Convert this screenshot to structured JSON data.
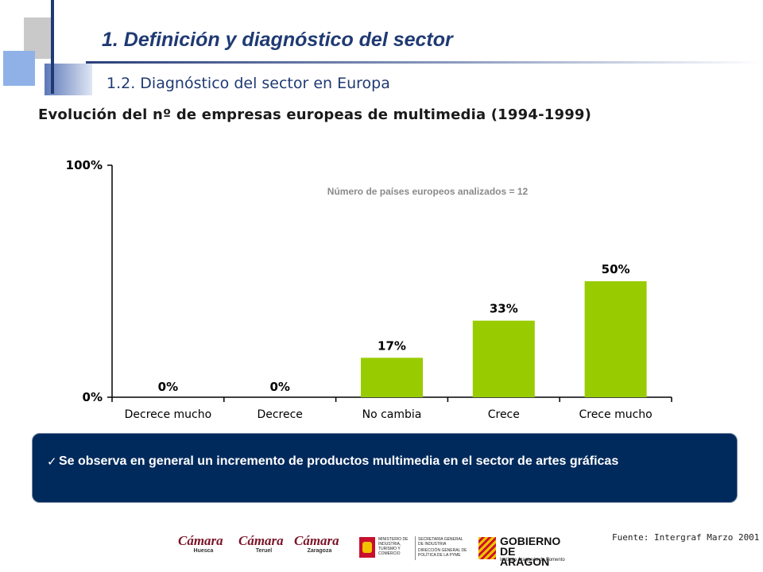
{
  "header": {
    "title": "1.  Definición y diagnóstico del sector",
    "subtitle": "1.2. Diagnóstico del sector en Europa"
  },
  "chart_data": {
    "type": "bar",
    "title": "Evolución del nº de empresas europeas de multimedia (1994-1999)",
    "annotation": "Número de países europeos analizados = 12",
    "categories": [
      "Decrece mucho",
      "Decrece",
      "No cambia",
      "Crece",
      "Crece mucho"
    ],
    "values": [
      0,
      0,
      17,
      33,
      50
    ],
    "data_labels": [
      "0%",
      "0%",
      "17%",
      "33%",
      "50%"
    ],
    "y_tick_labels": [
      "100%",
      "0%"
    ],
    "ylim": [
      0,
      100
    ],
    "xlabel": "",
    "ylabel": "",
    "grid": false,
    "bar_color": "#99cc00"
  },
  "note": {
    "check_icon": "checkmark-icon",
    "text": "Se observa en general un incremento  de productos multimedia en el sector de artes gráficas"
  },
  "footer": {
    "source": "Fuente: Intergraf  Marzo 2001",
    "logos": {
      "camara_huesca": {
        "name": "Cámara",
        "city": "Huesca"
      },
      "camara_teruel": {
        "name": "Cámara",
        "city": "Teruel"
      },
      "camara_zaragoza": {
        "name": "Cámara",
        "city": "Zaragoza"
      },
      "ministerio": {
        "left": "MINISTERIO DE INDUSTRIA, TURISMO Y COMERCIO",
        "right_1": "SECRETARIA GENERAL DE INDUSTRIA",
        "right_2": "DIRECCIÓN GENERAL DE POLÍTICA DE LA PYME"
      },
      "gobierno": {
        "line1": "GOBIERNO",
        "line2": "DE ARAGON",
        "sub": "Instituto Aragonés de Fomento"
      }
    }
  }
}
